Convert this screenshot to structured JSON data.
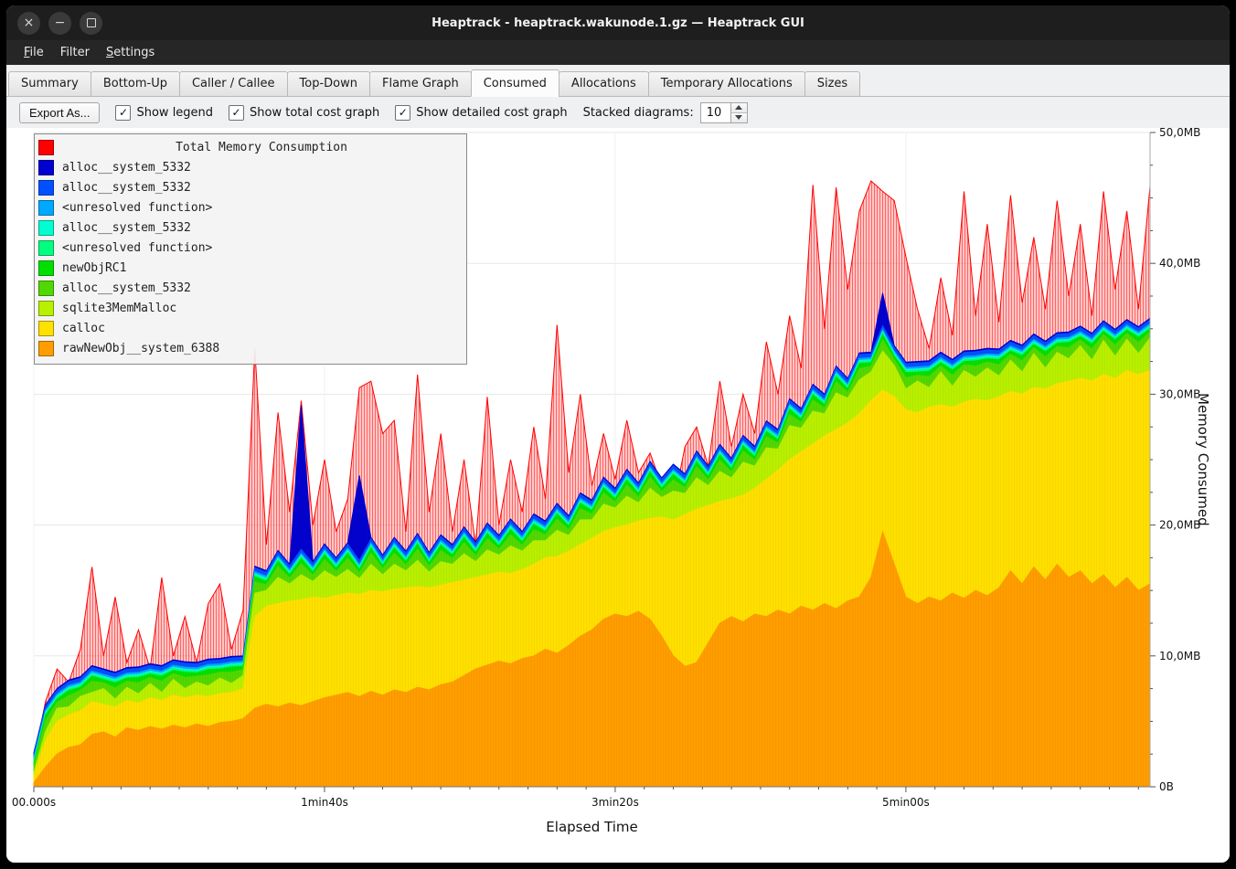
{
  "window": {
    "title": "Heaptrack - heaptrack.wakunode.1.gz — Heaptrack GUI",
    "controls": [
      {
        "name": "close",
        "glyph": "×"
      },
      {
        "name": "minimize",
        "glyph": "−"
      },
      {
        "name": "maximize",
        "glyph": ""
      }
    ]
  },
  "menu": {
    "items": [
      {
        "label": "File",
        "accel": 0
      },
      {
        "label": "Filter",
        "accel": -1
      },
      {
        "label": "Settings",
        "accel": 0
      }
    ]
  },
  "tabs": {
    "items": [
      "Summary",
      "Bottom-Up",
      "Caller / Callee",
      "Top-Down",
      "Flame Graph",
      "Consumed",
      "Allocations",
      "Temporary Allocations",
      "Sizes"
    ],
    "active": "Consumed"
  },
  "toolbar": {
    "export_label": "Export As...",
    "check_glyph": "✓",
    "checkboxes": [
      {
        "label": "Show legend",
        "checked": true
      },
      {
        "label": "Show total cost graph",
        "checked": true
      },
      {
        "label": "Show detailed cost graph",
        "checked": true
      }
    ],
    "stacked_label": "Stacked diagrams:",
    "stacked_value": "10"
  },
  "legend": {
    "title": "Total Memory Consumption",
    "title_color": "#ff0000",
    "entries": [
      {
        "label": "alloc__system_5332",
        "color": "#0000d0"
      },
      {
        "label": "alloc__system_5332",
        "color": "#0050ff"
      },
      {
        "label": "<unresolved function>",
        "color": "#00a8ff"
      },
      {
        "label": "alloc__system_5332",
        "color": "#00ffd0"
      },
      {
        "label": "<unresolved function>",
        "color": "#00ff80"
      },
      {
        "label": "newObjRC1",
        "color": "#00e000"
      },
      {
        "label": "alloc__system_5332",
        "color": "#50d800"
      },
      {
        "label": "sqlite3MemMalloc",
        "color": "#b8f000"
      },
      {
        "label": "calloc",
        "color": "#ffe000"
      },
      {
        "label": "rawNewObj__system_6388",
        "color": "#ff9d00"
      }
    ]
  },
  "chart_data": {
    "type": "area",
    "title": "Total Memory Consumption",
    "xlabel": "Elapsed Time",
    "ylabel": "Memory Consumed",
    "xlim_s": [
      0,
      384
    ],
    "ylim_mb": [
      0,
      50
    ],
    "t_step": 4,
    "x_minor_step": 10,
    "y_minor_step": 2.5,
    "x_ticks": [
      {
        "t": 0,
        "label": "00.000s"
      },
      {
        "t": 100,
        "label": "1min40s"
      },
      {
        "t": 200,
        "label": "3min20s"
      },
      {
        "t": 300,
        "label": "5min00s"
      }
    ],
    "y_ticks": [
      {
        "v": 0,
        "label": "0B"
      },
      {
        "v": 10,
        "label": "10,0MB"
      },
      {
        "v": 20,
        "label": "20,0MB"
      },
      {
        "v": 30,
        "label": "30,0MB"
      },
      {
        "v": 40,
        "label": "40,0MB"
      },
      {
        "v": 50,
        "label": "50,0MB"
      }
    ],
    "total": {
      "name": "Total Memory Consumption",
      "color": "#ff0000",
      "values": [
        2.0,
        6.5,
        9.0,
        8.0,
        10.5,
        16.8,
        10.0,
        14.5,
        9.5,
        12.0,
        9.0,
        16.0,
        10.0,
        13.0,
        9.5,
        14.0,
        15.5,
        10.5,
        13.5,
        33.5,
        18.5,
        28.6,
        21.0,
        29.5,
        20.0,
        25.0,
        19.5,
        22.0,
        30.5,
        31.0,
        27.0,
        28.0,
        19.5,
        31.5,
        21.0,
        27.0,
        19.5,
        25.0,
        18.5,
        29.8,
        20.0,
        25.0,
        21.0,
        27.5,
        22.0,
        35.3,
        24.0,
        30.0,
        23.0,
        27.0,
        23.5,
        28.0,
        24.0,
        25.5,
        23.0,
        21.5,
        26.0,
        27.5,
        24.5,
        31.0,
        26.0,
        30.0,
        27.0,
        34.0,
        30.0,
        36.0,
        32.0,
        46.0,
        35.0,
        45.8,
        38.0,
        44.0,
        46.3,
        45.5,
        44.8,
        40.5,
        36.5,
        33.5,
        38.9,
        34.5,
        45.5,
        36.0,
        43.0,
        35.5,
        45.2,
        37.0,
        42.0,
        36.5,
        44.8,
        37.5,
        43.0,
        36.0,
        45.5,
        38.0,
        44.0,
        36.5,
        45.9
      ]
    },
    "bands": [
      {
        "name": "rawNewObj__system_6388",
        "color": "#ff9d00",
        "values": [
          0.3,
          1.5,
          2.5,
          3.0,
          3.2,
          4.0,
          4.2,
          3.8,
          4.5,
          4.3,
          4.6,
          4.4,
          4.7,
          4.5,
          4.8,
          4.6,
          4.9,
          5.0,
          5.2,
          6.0,
          6.3,
          6.1,
          6.4,
          6.2,
          6.5,
          6.8,
          7.0,
          7.2,
          6.9,
          7.3,
          7.0,
          7.4,
          7.2,
          7.6,
          7.4,
          7.8,
          8.0,
          8.5,
          9.0,
          9.3,
          9.6,
          9.4,
          9.8,
          10.0,
          10.5,
          10.2,
          10.8,
          11.5,
          12.0,
          12.8,
          13.2,
          13.0,
          13.4,
          12.8,
          11.5,
          10.0,
          9.2,
          9.5,
          11.0,
          12.5,
          13.0,
          12.6,
          13.2,
          13.0,
          13.5,
          13.2,
          13.8,
          13.5,
          14.0,
          13.6,
          14.2,
          14.5,
          16.0,
          19.5,
          17.0,
          14.5,
          14.0,
          14.5,
          14.2,
          14.8,
          14.4,
          15.0,
          14.6,
          15.2,
          16.5,
          15.5,
          16.8,
          15.8,
          17.0,
          16.0,
          16.5,
          15.5,
          16.2,
          15.2,
          16.0,
          15.0,
          15.5
        ]
      },
      {
        "name": "calloc",
        "color": "#ffe000",
        "values": [
          0.5,
          2.0,
          2.5,
          2.5,
          2.6,
          2.5,
          2.1,
          2.3,
          2.1,
          2.1,
          2.2,
          2.2,
          2.3,
          2.3,
          2.2,
          2.3,
          2.2,
          2.2,
          2.3,
          7.0,
          7.5,
          7.9,
          7.8,
          8.1,
          8.0,
          7.6,
          7.6,
          7.6,
          7.8,
          7.7,
          7.9,
          7.7,
          8.0,
          7.7,
          7.8,
          7.6,
          7.6,
          7.3,
          7.0,
          6.9,
          6.8,
          6.9,
          6.8,
          7.0,
          7.0,
          7.4,
          7.2,
          7.0,
          7.0,
          6.7,
          6.6,
          7.0,
          6.9,
          7.7,
          9.1,
          10.4,
          11.6,
          11.7,
          10.5,
          9.3,
          9.0,
          9.7,
          9.6,
          10.5,
          10.7,
          11.8,
          11.8,
          12.7,
          12.8,
          13.7,
          13.6,
          14.0,
          13.5,
          10.8,
          12.8,
          14.3,
          14.6,
          14.5,
          15.0,
          14.2,
          15.0,
          14.6,
          14.9,
          14.6,
          13.7,
          14.5,
          13.7,
          14.6,
          13.8,
          15.0,
          14.7,
          15.5,
          15.3,
          16.0,
          15.8,
          16.5,
          16.3
        ]
      },
      {
        "name": "sqlite3MemMalloc",
        "color": "#b8f000",
        "values": [
          0.3,
          0.7,
          1.0,
          0.6,
          1.1,
          0.7,
          1.2,
          0.6,
          1.0,
          0.7,
          1.1,
          0.6,
          1.2,
          0.7,
          1.0,
          0.8,
          1.2,
          0.7,
          1.0,
          1.8,
          1.2,
          2.0,
          1.3,
          1.9,
          1.2,
          2.1,
          1.4,
          1.8,
          1.2,
          2.0,
          1.3,
          1.9,
          1.3,
          2.0,
          1.2,
          1.8,
          1.4,
          2.0,
          1.2,
          1.9,
          1.3,
          2.1,
          1.4,
          1.8,
          1.3,
          2.0,
          1.2,
          1.9,
          1.4,
          2.1,
          1.5,
          2.2,
          1.4,
          2.3,
          1.5,
          2.2,
          1.6,
          2.4,
          1.5,
          2.3,
          1.6,
          2.5,
          1.7,
          2.4,
          1.6,
          2.6,
          1.8,
          2.5,
          1.7,
          2.8,
          1.9,
          2.6,
          2.2,
          3.0,
          2.4,
          1.6,
          2.4,
          1.5,
          2.5,
          1.6,
          2.4,
          1.7,
          2.5,
          1.6,
          2.4,
          1.7,
          2.6,
          1.6,
          2.4,
          1.7,
          2.5,
          1.6,
          2.6,
          1.7,
          2.4,
          1.6,
          2.5
        ]
      },
      {
        "name": "alloc__system_5332",
        "color": "#50d800",
        "pattern": [
          0.45,
          0.85
        ]
      },
      {
        "name": "newObjRC1",
        "color": "#00e000",
        "pattern": [
          0.25,
          0.4
        ]
      },
      {
        "name": "<unresolved function>",
        "color": "#00ff80",
        "const": 0.12
      },
      {
        "name": "alloc__system_5332",
        "color": "#00ffd0",
        "const": 0.12
      },
      {
        "name": "<unresolved function>",
        "color": "#00a8ff",
        "const": 0.15
      },
      {
        "name": "alloc__system_5332",
        "color": "#0050ff",
        "const": 0.3
      },
      {
        "name": "alloc__system_5332",
        "color": "#0000d0",
        "const": 0.12,
        "spikes": {
          "23": 11,
          "28": 6.5,
          "73": 2.5
        }
      }
    ]
  }
}
